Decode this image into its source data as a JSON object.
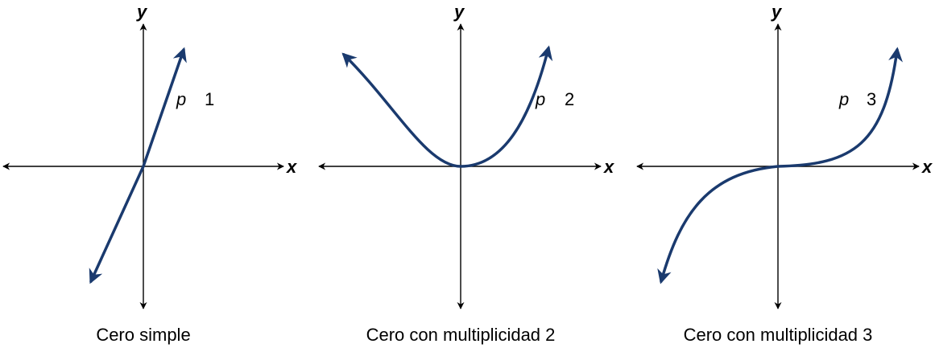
{
  "panels": [
    {
      "y_label": "y",
      "x_label": "x",
      "p_label": "p",
      "p_value": "1",
      "caption": "Cero simple"
    },
    {
      "y_label": "y",
      "x_label": "x",
      "p_label": "p",
      "p_value": "2",
      "caption": "Cero con multiplicidad 2"
    },
    {
      "y_label": "y",
      "x_label": "x",
      "p_label": "p",
      "p_value": "3",
      "caption": "Cero con multiplicidad 3"
    }
  ],
  "colors": {
    "curve": "#1a3a6e",
    "axes": "#000000"
  }
}
